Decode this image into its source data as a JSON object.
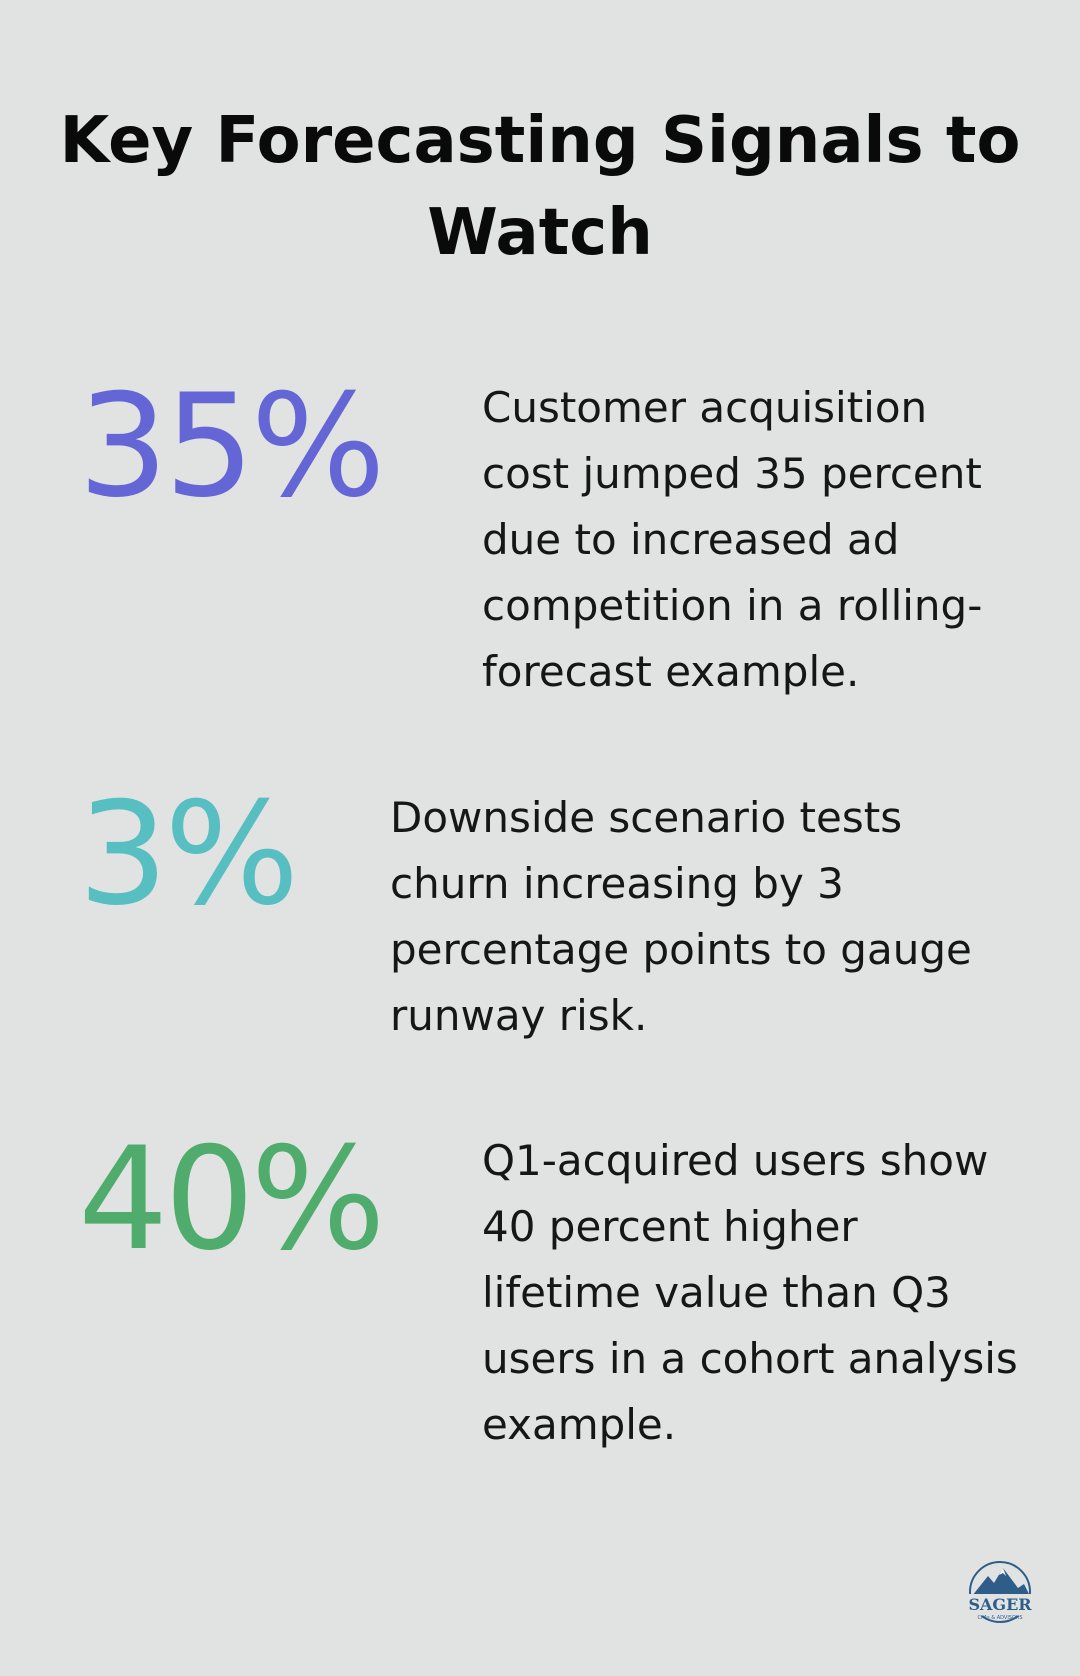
{
  "title": "Key Forecasting Signals to Watch",
  "stats": [
    {
      "value": "35%",
      "description": "Customer acquisition cost jumped 35 percent due to increased ad competition in a rolling-forecast example.",
      "color": "#6366d4"
    },
    {
      "value": "3%",
      "description": "Downside scenario tests churn increasing by 3 percentage points to gauge runway risk.",
      "color": "#57bec2"
    },
    {
      "value": "40%",
      "description": "Q1-acquired users show 40 percent higher lifetime value than Q3 users in a cohort analysis example.",
      "color": "#4fac6c"
    }
  ],
  "logo": {
    "name": "SAGER",
    "tagline": "CPAs & ADVISORS",
    "icon": "mountain-logo-icon",
    "color": "#2f5d8a"
  }
}
